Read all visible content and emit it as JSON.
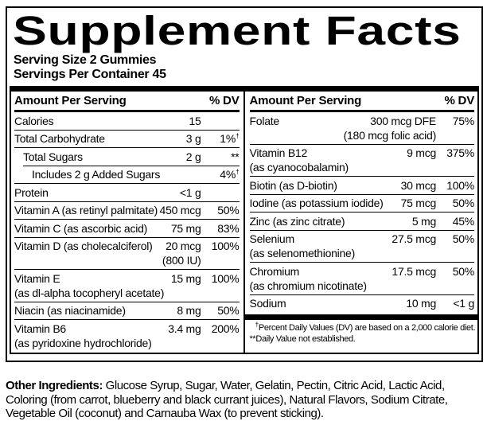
{
  "label": {
    "title": "Supplement Facts",
    "serving_size": "Serving Size 2 Gummies",
    "servings_per_container": "Servings Per Container 45"
  },
  "table": {
    "amount_header": "Amount Per Serving",
    "dv_header": "% DV",
    "left_rows": [
      {
        "name": "Calories",
        "amount": "15",
        "dv": "",
        "indent": 0
      },
      {
        "name": "Total Carbohydrate",
        "amount": "3 g",
        "dv": "1%†",
        "indent": 0
      },
      {
        "name": "Total Sugars",
        "amount": "2 g",
        "dv": "**",
        "indent": 1
      },
      {
        "name": "Includes 2 g Added Sugars",
        "amount": "",
        "dv": "4%†",
        "indent": 2
      },
      {
        "name": "Protein",
        "amount": "<1 g",
        "dv": "",
        "indent": 0
      },
      {
        "name": "Vitamin A (as retinyl palmitate)",
        "amount": "450 mcg",
        "dv": "50%",
        "indent": 0
      },
      {
        "name": "Vitamin C (as ascorbic acid)",
        "amount": "75 mg",
        "dv": "83%",
        "indent": 0
      },
      {
        "name": "Vitamin D (as cholecalciferol)",
        "amount": "20 mcg",
        "amount2": "(800 IU)",
        "dv": "100%",
        "indent": 0
      },
      {
        "name": "Vitamin E",
        "name2": "(as dl-alpha tocopheryl acetate)",
        "amount": "15 mg",
        "dv": "100%",
        "indent": 0
      },
      {
        "name": "Niacin (as niacinamide)",
        "amount": "8 mg",
        "dv": "50%",
        "indent": 0
      },
      {
        "name": "Vitamin B6",
        "name2": "(as pyridoxine hydrochloride)",
        "amount": "3.4 mg",
        "dv": "200%",
        "indent": 0
      }
    ],
    "right_rows": [
      {
        "name": "Folate",
        "amount": "300 mcg DFE",
        "amount2": "(180 mcg folic acid)",
        "dv": "75%",
        "indent": 0
      },
      {
        "name": "Vitamin B12",
        "name2": "(as cyanocobalamin)",
        "amount": "9 mcg",
        "dv": "375%",
        "indent": 0
      },
      {
        "name": "Biotin (as D-biotin)",
        "amount": "30 mcg",
        "dv": "100%",
        "indent": 0
      },
      {
        "name": "Iodine (as potassium iodide)",
        "amount": "75 mcg",
        "dv": "50%",
        "indent": 0
      },
      {
        "name": "Zinc (as zinc citrate)",
        "amount": "5 mg",
        "dv": "45%",
        "indent": 0
      },
      {
        "name": "Selenium",
        "name2": "(as selenomethionine)",
        "amount": "27.5 mcg",
        "dv": "50%",
        "indent": 0
      },
      {
        "name": "Chromium",
        "name2": "(as chromium nicotinate)",
        "amount": "17.5 mcg",
        "dv": "50%",
        "indent": 0
      },
      {
        "name": "Sodium",
        "amount": "10 mg",
        "dv": "<1 g",
        "indent": 0
      }
    ],
    "footnotes": [
      "†Percent Daily Values (DV) are based on a 2,000 calorie diet.",
      "**Daily Value not established."
    ]
  },
  "other_ingredients": {
    "label": "Other Ingredients:",
    "text": "Glucose Syrup, Sugar, Water, Gelatin, Pectin, Citric Acid, Lactic Acid, Coloring (from carrot, blueberry and black currant juices), Natural Flavors, Sodium Citrate, Vegetable Oil (coconut) and Carnauba Wax (to prevent sticking)."
  },
  "colors": {
    "ink": "#000000",
    "paper": "#ffffff"
  }
}
